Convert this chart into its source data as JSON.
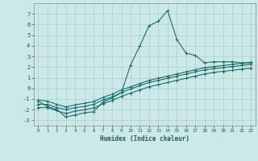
{
  "xlabel": "Humidex (Indice chaleur)",
  "bg_color": "#cce8e8",
  "grid_color": "#aacfcf",
  "line_color": "#1a6e6a",
  "xlim": [
    -0.5,
    23.5
  ],
  "ylim": [
    -3.5,
    8.0
  ],
  "xticks": [
    0,
    1,
    2,
    3,
    4,
    5,
    6,
    7,
    8,
    9,
    10,
    11,
    12,
    13,
    14,
    15,
    16,
    17,
    18,
    19,
    20,
    21,
    22,
    23
  ],
  "yticks": [
    -3,
    -2,
    -1,
    0,
    1,
    2,
    3,
    4,
    5,
    6,
    7
  ],
  "line1_x": [
    0,
    1,
    2,
    3,
    4,
    5,
    6,
    7,
    8,
    9,
    10,
    11,
    12,
    13,
    14,
    15,
    16,
    17,
    18,
    19,
    20,
    21,
    22,
    23
  ],
  "line1_y": [
    -1.2,
    -1.7,
    -2.0,
    -2.7,
    -2.5,
    -2.3,
    -2.2,
    -1.3,
    -0.9,
    -0.4,
    2.2,
    4.0,
    5.9,
    6.3,
    7.3,
    4.6,
    3.3,
    3.1,
    2.4,
    2.5,
    2.5,
    2.5,
    2.4,
    2.4
  ],
  "line2_x": [
    0,
    1,
    2,
    3,
    4,
    5,
    6,
    7,
    8,
    9,
    10,
    11,
    12,
    13,
    14,
    15,
    16,
    17,
    18,
    19,
    20,
    21,
    22,
    23
  ],
  "line2_y": [
    -1.5,
    -1.5,
    -1.8,
    -2.0,
    -1.8,
    -1.7,
    -1.5,
    -1.1,
    -0.8,
    -0.4,
    -0.05,
    0.25,
    0.55,
    0.75,
    0.95,
    1.15,
    1.35,
    1.55,
    1.75,
    1.85,
    1.95,
    2.05,
    2.15,
    2.25
  ],
  "line3_x": [
    0,
    1,
    2,
    3,
    4,
    5,
    6,
    7,
    8,
    9,
    10,
    11,
    12,
    13,
    14,
    15,
    16,
    17,
    18,
    19,
    20,
    21,
    22,
    23
  ],
  "line3_y": [
    -1.8,
    -1.8,
    -2.1,
    -2.35,
    -2.15,
    -2.0,
    -1.85,
    -1.45,
    -1.15,
    -0.75,
    -0.45,
    -0.15,
    0.15,
    0.35,
    0.55,
    0.75,
    0.95,
    1.15,
    1.35,
    1.5,
    1.6,
    1.7,
    1.8,
    1.9
  ],
  "line4_x": [
    0,
    1,
    2,
    3,
    4,
    5,
    6,
    7,
    8,
    9,
    10,
    11,
    12,
    13,
    14,
    15,
    16,
    17,
    18,
    19,
    20,
    21,
    22,
    23
  ],
  "line4_y": [
    -1.1,
    -1.2,
    -1.5,
    -1.75,
    -1.55,
    -1.4,
    -1.25,
    -0.85,
    -0.55,
    -0.15,
    0.15,
    0.45,
    0.75,
    0.95,
    1.15,
    1.35,
    1.55,
    1.75,
    1.95,
    2.05,
    2.15,
    2.25,
    2.35,
    2.45
  ]
}
